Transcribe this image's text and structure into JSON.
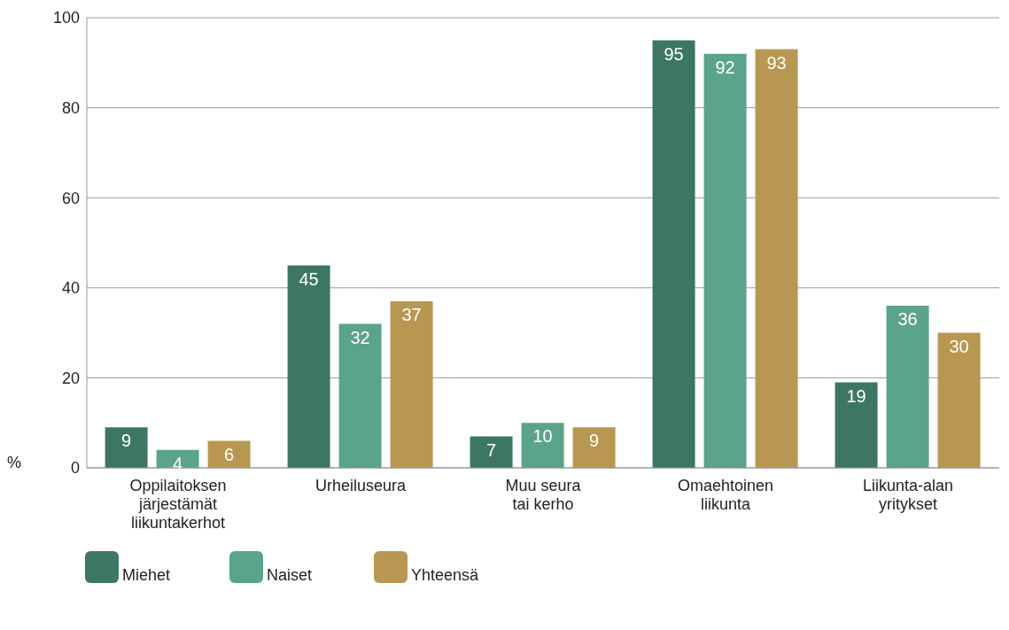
{
  "chart_data": {
    "type": "bar",
    "ylabel": "%",
    "categories": [
      "Oppilaitoksen järjestämät liikuntakerhot",
      "Urheiluseura",
      "Muu seura tai kerho",
      "Omaehtoinen liikunta",
      "Liikunta-alan yritykset"
    ],
    "series": [
      {
        "name": "Miehet",
        "color": "#3d7762",
        "values": [
          9,
          45,
          7,
          95,
          19
        ]
      },
      {
        "name": "Naiset",
        "color": "#5ba38a",
        "values": [
          4,
          32,
          10,
          92,
          36
        ]
      },
      {
        "name": "Yhteensä",
        "color": "#b89752",
        "values": [
          6,
          37,
          9,
          93,
          30
        ]
      }
    ],
    "ylim": [
      0,
      100
    ],
    "yticks": [
      0,
      20,
      40,
      60,
      80,
      100
    ],
    "grid": "y",
    "legend": "bottom left",
    "data_labels": true
  }
}
